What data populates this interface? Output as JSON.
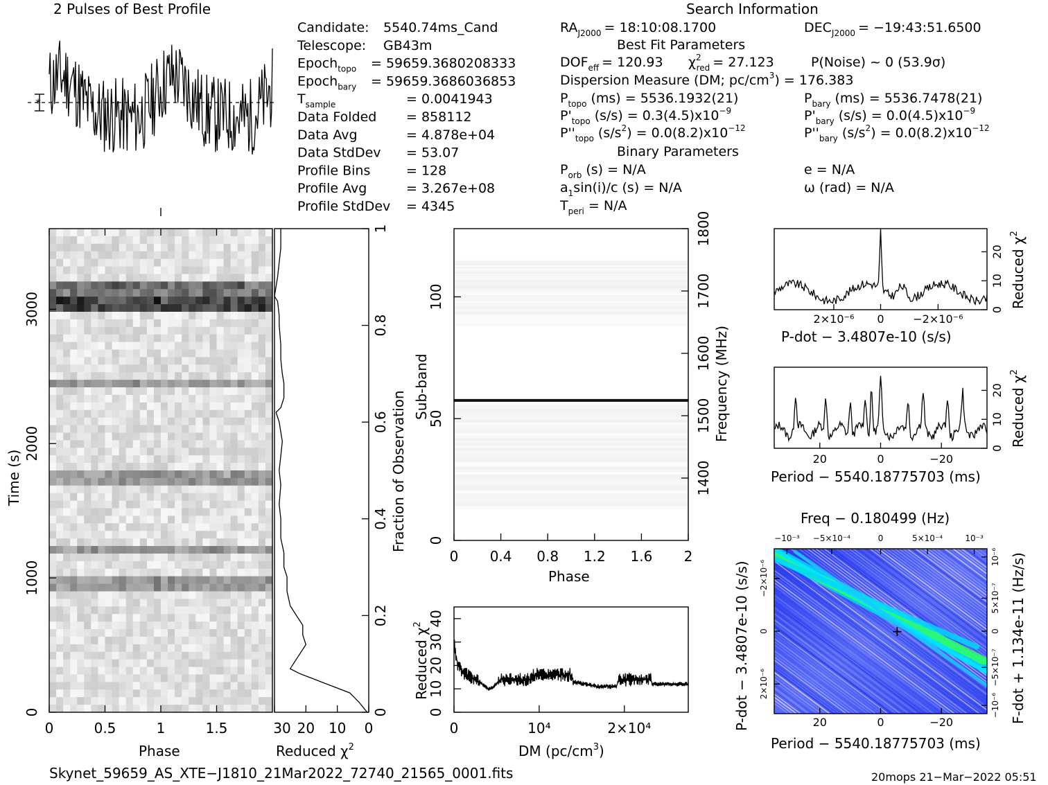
{
  "header": {
    "profile_title": "2 Pulses of Best Profile",
    "search_title": "Search Information"
  },
  "info": {
    "col1": [
      {
        "name": "Candidate:",
        "value": "5540.74ms_Cand"
      },
      {
        "name": "Telescope:",
        "value": "GB43m"
      },
      {
        "name": "Epoch",
        "sub": "topo",
        "value": "= 59659.3680208333"
      },
      {
        "name": "Epoch",
        "sub": "bary",
        "value": "= 59659.3686036853"
      },
      {
        "name": "T",
        "sub": "sample",
        "value": "=    0.0041943"
      },
      {
        "name": "Data Folded",
        "value": "=    858112"
      },
      {
        "name": "Data Avg",
        "value": "=    4.878e+04"
      },
      {
        "name": "Data StdDev",
        "value": "=    53.07"
      },
      {
        "name": "Profile Bins",
        "value": "=    128"
      },
      {
        "name": "Profile Avg",
        "value": "=    3.267e+08"
      },
      {
        "name": "Profile StdDev",
        "value": "=    4345"
      }
    ],
    "ra": "RA",
    "ra_sub": "J2000",
    "ra_value": "= 18:10:08.1700",
    "dec": "DEC",
    "dec_sub": "J2000",
    "dec_value": "= −19:43:51.6500",
    "best_fit_header": "Best Fit Parameters",
    "dof": "DOF",
    "dof_sub": "eff",
    "dof_value": "= 120.93",
    "chi_label": "χ",
    "chi_sub": "red",
    "chi_value": "= 27.123",
    "pnoise": "P(Noise) ~ 0    (53.9σ)",
    "dm_line": "Dispersion Measure (DM; pc/cm",
    "dm_value": ") = 176.383",
    "ptopo": "P",
    "ptopo_sub": "topo",
    "ptopo_value": "(ms) =   5536.1932(21)",
    "pbary_sub": "bary",
    "pbary_value": "(ms) =   5536.7478(21)",
    "pdtopo_value": "(s/s) =   0.3(4.5)x10",
    "pdtopo_exp": "−9",
    "pdbary_value": "(s/s) = 0.0(4.5)x10",
    "pdbary_exp": "−9",
    "pddtopo_value": "(s/s",
    "pddtopo_rest": ") = 0.0(8.2)x10",
    "pddtopo_exp": "−12",
    "pddbary_value": "(s/s",
    "pddbary_rest": ") = 0.0(8.2)x10",
    "pddbary_exp": "−12",
    "binary_header": "Binary Parameters",
    "porb": "P",
    "porb_sub": "orb",
    "porb_value": "(s) = N/A",
    "ecc": "e = N/A",
    "a1": "a",
    "a1_sub": "1",
    "a1_value": "sin(i)/c (s) = N/A",
    "omega": "ω (rad) = N/A",
    "tperi": "T",
    "tperi_sub": "peri",
    "tperi_value": "= N/A"
  },
  "footer": {
    "filename": "Skynet_59659_AS_XTE−J1810_21Mar2022_72740_21565_0001.fits",
    "stamp": "20mops 21−Mar−2022 05:51"
  },
  "chart_data": [
    {
      "type": "line",
      "id": "profile",
      "title": "2 Pulses of Best Profile",
      "xlim": [
        0,
        2
      ],
      "note_x": "phase, 2 pulses, 256 bins",
      "series": [
        {
          "values_summary": "noisy profile with broad peaks near phase 0.15 and 1.15, troughs near 0.9 and 1.9"
        }
      ]
    },
    {
      "type": "heatmap",
      "id": "time-phase",
      "xlabel": "Phase",
      "ylabel": "Time (s)",
      "xlim": [
        0,
        2
      ],
      "ylim": [
        0,
        3600
      ],
      "xticks": [
        "0",
        "0.5",
        "1",
        "1.5"
      ],
      "yticks": [
        "0",
        "1000",
        "2000",
        "3000"
      ],
      "dark_bands_time": [
        3050,
        3150,
        2440,
        1740,
        1210,
        950
      ],
      "colormap": "gray"
    },
    {
      "type": "line",
      "id": "time-chi2",
      "xlabel": "Reduced χ²",
      "ylabel": "Fraction of Observation",
      "xlim": [
        30,
        0
      ],
      "ylim": [
        0,
        1
      ],
      "xticks": [
        "30",
        "20",
        "10",
        "0"
      ],
      "yticks": [
        "0",
        "0.2",
        "0.4",
        "0.6",
        "0.8",
        "1"
      ],
      "series": [
        {
          "y": [
            0,
            0.02,
            0.04,
            0.05,
            0.06,
            0.07,
            0.08,
            0.09,
            0.1,
            0.12,
            0.14,
            0.16,
            0.18,
            0.2,
            0.22,
            0.25,
            0.28,
            0.3,
            0.33,
            0.36,
            0.4,
            0.43,
            0.47,
            0.5,
            0.53,
            0.56,
            0.6,
            0.62,
            0.63,
            0.65,
            0.68,
            0.7,
            0.73,
            0.76,
            0.8,
            0.82,
            0.85,
            0.86,
            0.9,
            0.93,
            0.96,
            1.0
          ],
          "x": [
            0.5,
            3,
            6,
            10,
            14,
            18,
            22,
            25,
            24,
            22,
            20,
            21,
            21,
            23,
            25,
            26,
            26,
            27,
            27,
            28,
            28,
            28.5,
            28,
            28.5,
            28,
            27.5,
            28.5,
            29.5,
            28,
            27,
            27,
            27.5,
            28,
            28,
            28.5,
            28.5,
            29,
            30,
            29,
            28.5,
            28,
            28
          ]
        }
      ]
    },
    {
      "type": "heatmap",
      "id": "subband-phase",
      "xlabel": "Phase",
      "ylabel": "Sub-band",
      "y2label": "Frequency (MHz)",
      "xlim": [
        0,
        2
      ],
      "ylim": [
        0,
        128
      ],
      "y2lim": [
        1300,
        1800
      ],
      "xticks": [
        "0",
        "0.4",
        "0.8",
        "1.2",
        "1.6",
        "2"
      ],
      "yticks": [
        "0",
        "50",
        "100"
      ],
      "y2ticks": [
        "1400",
        "1500",
        "1600",
        "1700",
        "1800"
      ],
      "active_bands": [
        [
          13,
          56
        ],
        [
          88,
          115
        ]
      ],
      "rfi_band": 57.5,
      "colormap": "gray"
    },
    {
      "type": "line",
      "id": "dm-chi2",
      "xlabel": "DM (pc/cm³)",
      "ylabel": "Reduced χ²",
      "xlim": [
        0,
        27500
      ],
      "ylim": [
        0,
        45
      ],
      "xticks": [
        "0",
        "10⁴",
        "2×10⁴"
      ],
      "yticks": [
        "0",
        "10",
        "20",
        "30",
        "40"
      ],
      "series": [
        {
          "x": [
            0,
            200,
            500,
            1000,
            1500,
            2000,
            3000,
            4000,
            4500,
            5400,
            9000,
            9200,
            13700,
            14000,
            17000,
            19000,
            19500,
            23100,
            23300,
            27500
          ],
          "y": [
            30,
            24,
            20,
            17,
            16,
            15,
            13,
            10,
            10,
            14,
            14,
            16,
            16,
            13,
            11,
            11,
            14,
            14,
            12,
            12
          ]
        }
      ]
    },
    {
      "type": "line",
      "id": "pdot-chi2",
      "xlabel": "P-dot − 3.4807e-10 (s/s)",
      "ylabel": "Reduced χ²",
      "xlim": [
        4.5e-06,
        -4.5e-06
      ],
      "ylim": [
        0,
        28
      ],
      "xticks": [
        "2×10⁻⁶",
        "0",
        "−2×10⁻⁶"
      ],
      "yticks": [
        "0",
        "10",
        "20"
      ],
      "series": [
        {
          "peak_x": 0,
          "peak_y": 27,
          "baseline": 7
        }
      ]
    },
    {
      "type": "line",
      "id": "period-chi2",
      "xlabel": "Period − 5540.18775703 (ms)",
      "ylabel": "Reduced χ²",
      "xlim": [
        35,
        -35
      ],
      "ylim": [
        0,
        28
      ],
      "xticks": [
        "20",
        "0",
        "−20"
      ],
      "yticks": [
        "0",
        "10",
        "20"
      ],
      "series": [
        {
          "peaks_x": [
            28,
            18,
            10,
            5,
            0,
            3,
            -9,
            -14,
            -22,
            -27
          ],
          "peak_y": 24,
          "baseline": 7
        }
      ]
    },
    {
      "type": "heatmap",
      "id": "p-pdot",
      "title": "Freq − 0.180499 (Hz)",
      "xlabel": "Period − 5540.18775703 (ms)",
      "ylabel": "P-dot − 3.4807e-10 (s/s)",
      "y2label": "F-dot + 1.134e-11 (Hz/s)",
      "xticks": [
        "20",
        "0",
        "−20"
      ],
      "x2ticks": [
        "−10⁻³",
        "−5×10⁻⁴",
        "0",
        "5×10⁻⁴",
        "10⁻³"
      ],
      "yticks": [
        "−2×10⁻⁶",
        "0",
        "2×10⁻⁶"
      ],
      "y2ticks": [
        "10⁻⁶",
        "5×10⁻⁷",
        "0",
        "−5×10⁻⁷",
        "−10⁻⁶"
      ],
      "best": {
        "period": 3.5,
        "pdot": 0
      },
      "colors": [
        "#3030ff",
        "#00e5ff",
        "#30ff60",
        "#ffffff"
      ]
    }
  ]
}
